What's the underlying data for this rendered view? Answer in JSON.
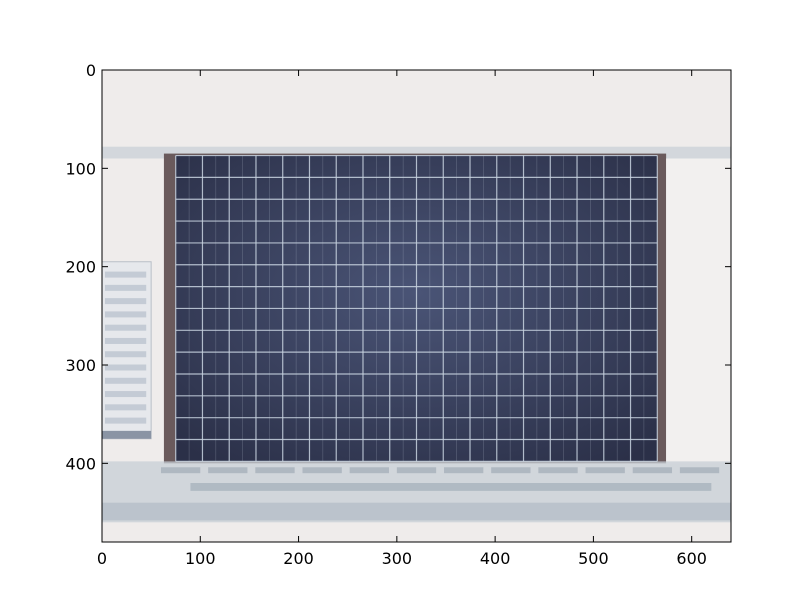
{
  "chart_data": {
    "type": "image",
    "title": "",
    "xlabel": "",
    "ylabel": "",
    "xlim": [
      0,
      640
    ],
    "ylim": [
      480,
      0
    ],
    "x_ticks": [
      0,
      100,
      200,
      300,
      400,
      500,
      600
    ],
    "y_ticks": [
      0,
      100,
      200,
      300,
      400
    ],
    "x_tick_labels": [
      "0",
      "100",
      "200",
      "300",
      "400",
      "500",
      "600"
    ],
    "y_tick_labels": [
      "0",
      "100",
      "200",
      "300",
      "400"
    ],
    "grid": false,
    "legend": "none"
  },
  "image": {
    "description_icon": "upside-down-photo-of-monitor-with-grid-icon",
    "colors": {
      "background": "#efeceb",
      "screen_dark": "#2b3048",
      "screen_mid": "#4a5476",
      "grid_line": "#c8d3e0",
      "bezel": "#6a5a5c",
      "taskbar": "#c7cfd6"
    },
    "screen_grid": {
      "columns": 18,
      "rows": 14
    }
  }
}
